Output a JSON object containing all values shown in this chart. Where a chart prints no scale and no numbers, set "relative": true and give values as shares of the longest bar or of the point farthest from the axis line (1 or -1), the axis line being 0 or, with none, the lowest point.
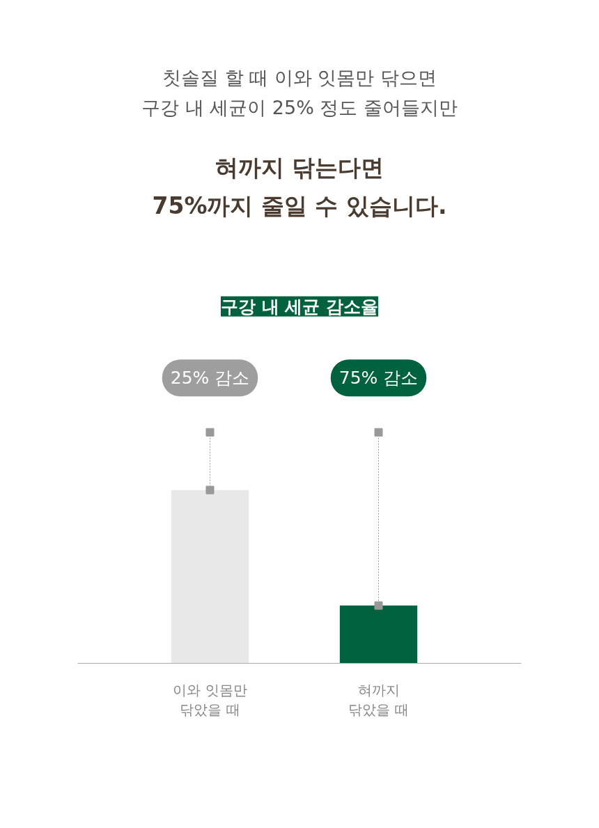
{
  "chart_data": {
    "type": "bar",
    "relative": true,
    "title": "구강 내 세균 감소율",
    "categories": [
      "이와 잇몸만\n닦았을 때",
      "혀까지\n닦았을 때"
    ],
    "series": [
      {
        "colors": [
          "#e8e8e8",
          "#00623f"
        ],
        "values": [
          0.75,
          0.25
        ]
      },
      {
        "type": "scatter",
        "color": "#999999",
        "values": [
          1,
          1
        ]
      },
      {
        "type": "scatter",
        "color": "#999999",
        "values": [
          0.75,
          0.25
        ]
      }
    ],
    "marker": "square",
    "annotations": [
      "칫솔질 할 때 이와 잇몸만 닦으면\n구강 내 세균이 25% 정도 줄어들지만",
      "혀까지 닦는다면\n75%까지 줄일 수 있습니다.",
      {
        "text": "25% 감소",
        "x": "이와 잇몸만\n닦았을 때",
        "y": 1
      },
      {
        "text": "75% 감소",
        "x": "혀까지\n닦았을 때",
        "y": 1
      }
    ]
  }
}
